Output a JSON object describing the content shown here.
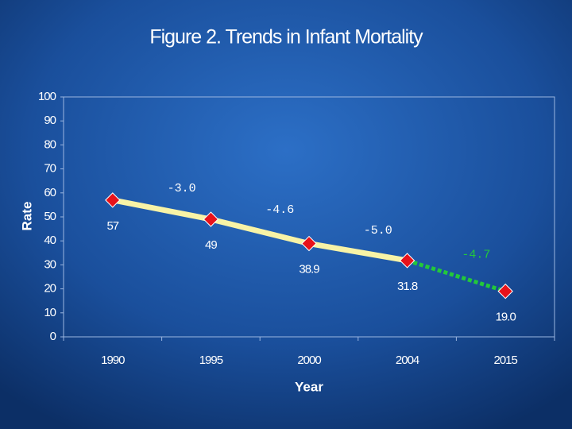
{
  "chart_data": {
    "type": "line",
    "title": "Figure 2.  Trends in Infant Mortality",
    "x_label": "Year",
    "y_label": "Rate",
    "categories": [
      "1990",
      "1995",
      "2000",
      "2004",
      "2015"
    ],
    "values": [
      57,
      49,
      38.9,
      31.8,
      19.0
    ],
    "value_labels": [
      "57",
      "49",
      "38.9",
      "31.8",
      "19.0"
    ],
    "annotations": [
      "-3.0",
      "-4.6",
      "-5.0",
      "-4.7"
    ],
    "line_color": "#f8f3a6",
    "marker_color": "#e8121a",
    "projection_color": "#22c93a",
    "projection_start": 3,
    "ylim": [
      0,
      100
    ],
    "yticks": [
      0,
      10,
      20,
      30,
      40,
      50,
      60,
      70,
      80,
      90,
      100
    ]
  }
}
